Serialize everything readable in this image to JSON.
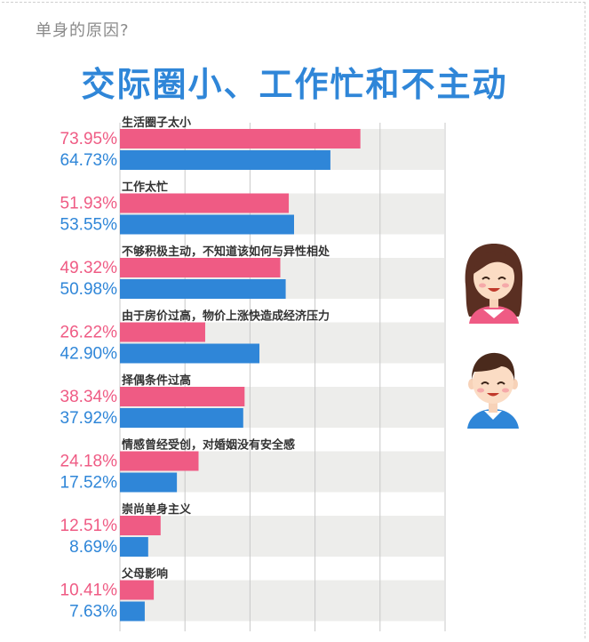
{
  "header": {
    "subtitle": "单身的原因?",
    "title": "交际圈小、工作忙和不主动"
  },
  "colors": {
    "female": "#ef5b84",
    "male": "#2f86d8",
    "row_band": "#ededeb",
    "grid": "#c8c8c8"
  },
  "chart_data": {
    "type": "bar",
    "orientation": "horizontal",
    "title": "交际圈小、工作忙和不主动",
    "subtitle": "单身的原因?",
    "categories": [
      "生活圈子太小",
      "工作太忙",
      "不够积极主动，不知道该如何与异性相处",
      "由于房价过高，物价上涨快造成经济压力",
      "择偶条件过高",
      "情感曾经受创，对婚姻没有安全感",
      "崇尚单身主义",
      "父母影响"
    ],
    "series": [
      {
        "color": "#ef5b84",
        "values": [
          73.95,
          51.93,
          49.32,
          26.22,
          38.34,
          24.18,
          12.51,
          10.41
        ],
        "labels": [
          "73.95%",
          "51.93%",
          "49.32%",
          "26.22%",
          "38.34%",
          "24.18%",
          "12.51%",
          "10.41%"
        ]
      },
      {
        "color": "#2f86d8",
        "values": [
          64.73,
          53.55,
          50.98,
          42.9,
          37.92,
          17.52,
          8.69,
          7.63
        ],
        "labels": [
          "64.73%",
          "53.55%",
          "50.98%",
          "42.90%",
          "37.92%",
          "17.52%",
          "8.69%",
          "7.63%"
        ]
      }
    ],
    "legend": "avatars-right",
    "grid": true
  },
  "avatars": {
    "female": "female-avatar-icon",
    "male": "male-avatar-icon"
  }
}
